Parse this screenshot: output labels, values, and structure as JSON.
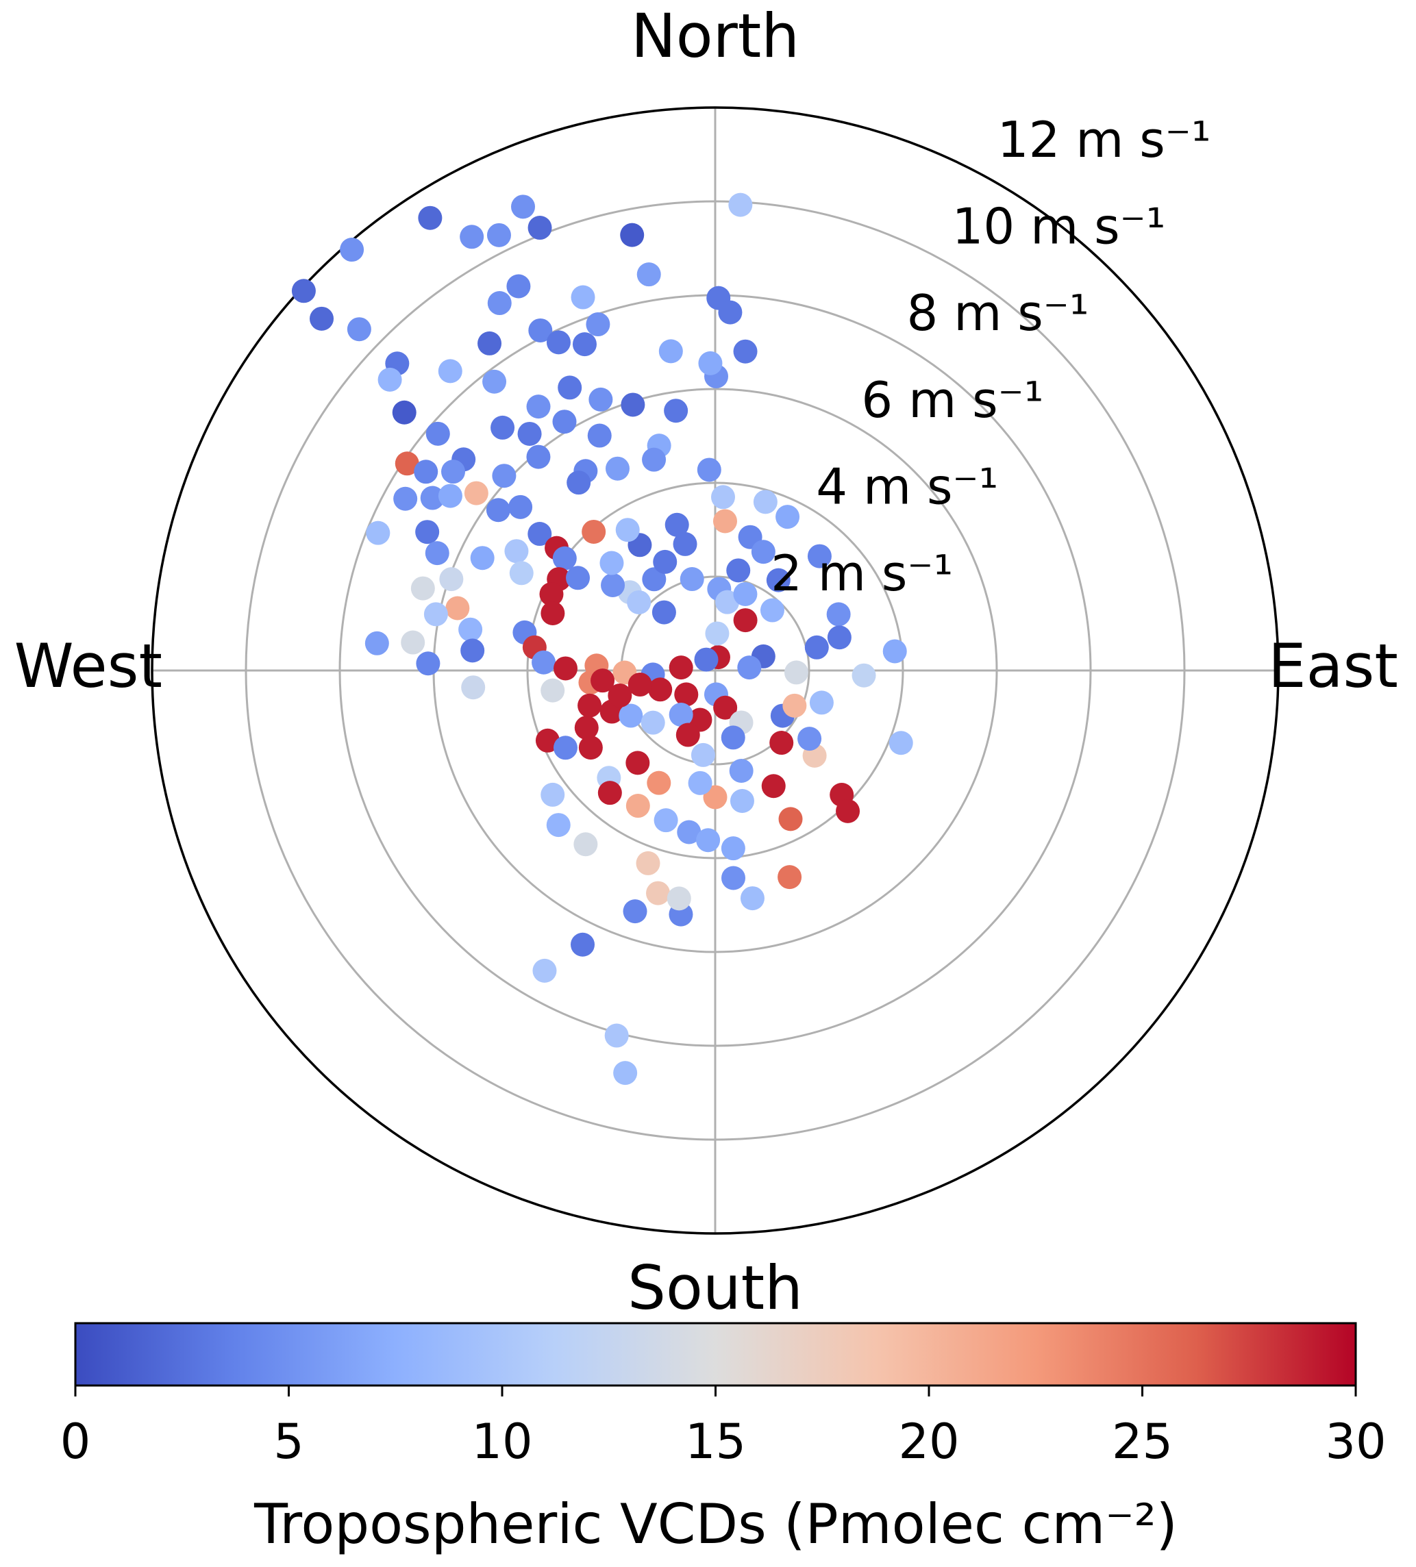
{
  "chart_data": {
    "type": "polar_scatter",
    "theta": [
      3.1,
      327.8,
      337.5,
      319.2,
      312.7,
      311.8,
      330.7,
      333.6,
      338.4,
      349.2,
      350.5,
      0.5,
      2.4,
      5.4,
      0.2,
      359.1,
      352.1,
      340.5,
      341.3,
      332.9,
      329.6,
      332.8,
      325.4,
      334.5,
      338.2,
      313.8,
      314.0,
      311.8,
      309.7,
      318.5,
      322.6,
      332.8,
      337.1,
      342.8,
      351.4,
      326.2,
      310.5,
      318.8,
      321.9,
      328.8,
      333.8,
      346,
      343.8,
      358.3,
      303.9,
      310,
      307.2,
      304.5,
      312.7,
      320.4,
      327,
      334.2,
      324,
      299,
      301.4,
      303.4,
      306.6,
      306.5,
      310,
      292.2,
      295.7,
      292.9,
      295.8,
      301,
      296.7,
      285.7,
      289.1,
      283.6,
      281.4,
      274.6,
      275.3,
      271.4,
      279.5,
      274.7,
      266,
      318.8,
      307.9,
      307.7,
      306.7,
      300.3,
      304,
      295,
      289.4,
      281.3,
      277.3,
      272.7,
      270.8,
      263,
      264.5,
      254.4,
      246,
      248.3,
      241.8,
      247.3,
      242.7,
      238.2,
      224.7,
      232.6,
      225.4,
      216.7,
      220.7,
      220,
      209.7,
      206.6,
      198.2,
      199.2,
      194.4,
      198.4,
      188,
      189,
      205.8,
      209.6,
      195.1,
      192.6,
      189.2,
      182.4,
      174.2,
      175,
      170.7,
      160.2,
      153.1,
      153.2,
      168.3,
      180,
      187.6,
      165.4,
      134.5,
      136.7,
      130.6,
      125.9,
      137.5,
      123.9,
      113.9,
      106.8,
      111.3,
      83.9,
      91.9,
      65.5,
      75.1,
      77.2,
      42.4,
      35,
      25.2,
      16.6,
      2.6,
      3.8,
      14.7,
      13,
      43.5,
      31,
      73.7,
      91.4,
      85,
      13,
      320.7,
      275,
      266.3,
      268.7,
      272.4,
      250.9,
      259.4,
      230.4,
      197,
      217.7,
      202.9,
      177.6,
      164.9,
      153.4,
      165,
      188.1,
      230,
      312.5,
      311.8,
      309.8,
      316.1,
      326.2,
      345.8,
      335.2,
      346.6,
      329,
      328.1,
      345.3,
      318.7,
      2.8,
      10,
      3.1,
      21.5,
      22.1,
      264.9,
      255.3
    ],
    "r": [
      9.94,
      11.4,
      10.7,
      11.85,
      11.93,
      11.25,
      10.6,
      10.36,
      10.15,
      9.45,
      8.56,
      7.94,
      7.64,
      6.83,
      6.27,
      6.55,
      6.87,
      8.44,
      7.79,
      9.2,
      9.08,
      8.15,
      8.47,
      7.75,
      7.49,
      10.51,
      9.42,
      9.3,
      8.61,
      8.52,
      7.75,
      6.78,
      6.27,
      5.93,
      5.6,
      6.77,
      7.77,
      6.88,
      6.41,
      6.2,
      5.58,
      4.94,
      4.68,
      4.28,
      7.91,
      7.0,
      7.01,
      7.48,
      6.12,
      5.91,
      5.07,
      4.78,
      4.95,
      7.55,
      7.06,
      6.76,
      6.34,
      5.75,
      5.42,
      7.76,
      6.81,
      6.43,
      5.51,
      4.94,
      4.62,
      6.47,
      5.95,
      5.65,
      6.07,
      7.23,
      6.47,
      6.12,
      5.29,
      5.19,
      5.17,
      3.93,
      4.74,
      4.27,
      4.0,
      3.86,
      3.53,
      3.85,
      3.67,
      4.14,
      3.88,
      3.66,
      3.19,
      3.49,
      2.67,
      2.78,
      3.0,
      2.37,
      2.04,
      3.87,
      3.59,
      3.12,
      3.22,
      4.36,
      4.69,
      4.62,
      3.44,
      2.57,
      3.32,
      2.68,
      3.36,
      4.35,
      4.9,
      5.41,
      5.25,
      4.92,
      6.49,
      7.36,
      8.06,
      8.79,
      3.49,
      3.62,
      3.81,
      4.44,
      4.92,
      4.68,
      3.55,
      2.76,
      2.84,
      2.7,
      2.42,
      2.21,
      3.78,
      4.12,
      2.79,
      2.48,
      2.09,
      1.73,
      1.85,
      2.37,
      4.25,
      3.85,
      3.17,
      2.89,
      2.74,
      2.22,
      3.3,
      2.35,
      3.62,
      3.75,
      3.7,
      3.19,
      2.94,
      2.19,
      1.77,
      1.25,
      1.07,
      1.73,
      0.73,
      0.29,
      0.3,
      0.73,
      1.33,
      1.93,
      2.53,
      1.24,
      1.63,
      0.8,
      1.1,
      1.19,
      1.49,
      0.51,
      0.82,
      1.24,
      1.48,
      1.82,
      1.73,
      2.47,
      2.18,
      2.84,
      3.18,
      2.34,
      2.01,
      2.55,
      2.77,
      3.12,
      3.53,
      3.21,
      1.65,
      1.74,
      1.48,
      0.79,
      1.75,
      2.73,
      2.41,
      2.1
    ],
    "c": [
      10,
      2,
      5,
      5,
      2,
      2,
      5,
      5,
      2,
      1,
      6,
      3,
      3,
      3,
      5,
      7,
      7,
      8,
      5,
      4,
      5,
      4,
      2,
      3,
      3,
      5,
      3,
      8,
      1,
      8,
      6,
      3,
      5,
      2,
      3,
      5,
      4,
      3,
      3,
      4,
      4,
      7,
      5,
      5,
      26,
      3,
      5,
      4,
      5,
      4,
      4,
      6,
      3,
      5,
      5,
      7,
      20,
      4,
      4,
      9,
      3,
      5,
      7,
      10,
      11,
      14,
      13,
      21,
      10,
      6,
      14,
      4,
      8,
      3,
      13,
      25,
      3,
      29,
      4,
      29,
      4,
      29,
      29,
      4,
      28,
      5,
      29,
      14,
      24,
      29,
      29,
      29,
      7,
      29,
      4,
      29,
      11,
      10,
      8,
      14,
      29,
      29,
      21,
      23,
      8,
      18,
      18,
      4,
      4,
      14,
      3,
      10,
      10,
      9,
      6,
      7,
      7,
      5,
      9,
      25,
      26,
      29,
      9,
      22,
      8,
      6,
      29,
      29,
      18,
      5,
      29,
      3,
      20,
      9,
      9,
      7,
      12,
      5,
      3,
      3,
      4,
      3,
      7,
      10,
      10,
      21,
      4,
      3,
      8,
      29,
      2,
      14,
      5,
      29,
      3,
      29,
      4,
      21,
      24,
      29,
      29,
      29,
      29,
      6,
      29,
      6,
      29,
      14,
      4,
      10,
      10,
      12,
      10,
      5,
      8,
      4,
      6,
      3,
      3,
      2,
      9,
      3,
      3,
      6,
      10,
      11,
      7,
      5,
      29,
      29
    ],
    "rlim": [
      0,
      12
    ],
    "rticks": [
      {
        "value": 2,
        "label": "2 m s⁻¹"
      },
      {
        "value": 4,
        "label": "4 m s⁻¹"
      },
      {
        "value": 6,
        "label": "6 m s⁻¹"
      },
      {
        "value": 8,
        "label": "8 m s⁻¹"
      },
      {
        "value": 10,
        "label": "10 m s⁻¹"
      },
      {
        "value": 12,
        "label": "12 m s⁻¹"
      }
    ],
    "thetaticks": [
      {
        "value": 0,
        "label": "North"
      },
      {
        "value": 90,
        "label": "East"
      },
      {
        "value": 180,
        "label": "South"
      },
      {
        "value": 270,
        "label": "West"
      }
    ],
    "rlabel_angle": 22.5,
    "grid": true,
    "colorbar": {
      "label": "Tropospheric VCDs (Pmolec cm⁻²)",
      "lim": [
        0,
        30
      ],
      "ticks": [
        0,
        5,
        10,
        15,
        20,
        25,
        30
      ],
      "cmap": [
        "#3b4cc0",
        "#6282ea",
        "#8db0fe",
        "#b8d0f9",
        "#dddddd",
        "#f5c4ad",
        "#f49a7b",
        "#de604d",
        "#b40426"
      ]
    }
  }
}
